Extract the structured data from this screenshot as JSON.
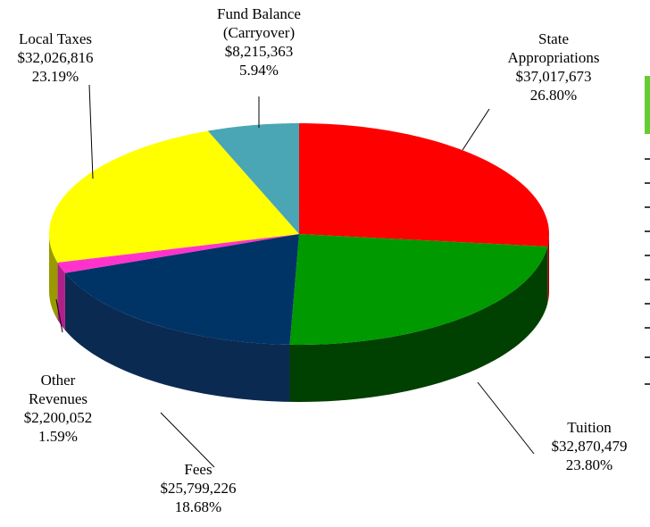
{
  "chart_data": {
    "type": "pie",
    "categories": [
      "State\nAppropriations",
      "Tuition",
      "Fees",
      "Other\nRevenues",
      "Local Taxes",
      "Fund Balance\n(Carryover)"
    ],
    "values": [
      37017673,
      32870479,
      25799226,
      2200052,
      32026816,
      8215363
    ],
    "value_labels": [
      "$37,017,673",
      "$32,870,479",
      "$25,799,226",
      "$2,200,052",
      "$32,026,816",
      "$8,215,363"
    ],
    "percentages": [
      26.8,
      23.8,
      18.68,
      1.59,
      23.19,
      5.94
    ],
    "percentage_labels": [
      "26.80%",
      "23.80%",
      "18.68%",
      "1.59%",
      "23.19%",
      "5.94%"
    ],
    "colors": [
      "#ff0000",
      "#009900",
      "#003366",
      "#ff33cc",
      "#ffff00",
      "#4aa6b4"
    ],
    "side_colors": [
      "#990000",
      "#004000",
      "#0a2a52",
      "#b0208a",
      "#999900",
      "#2c6c76"
    ]
  }
}
